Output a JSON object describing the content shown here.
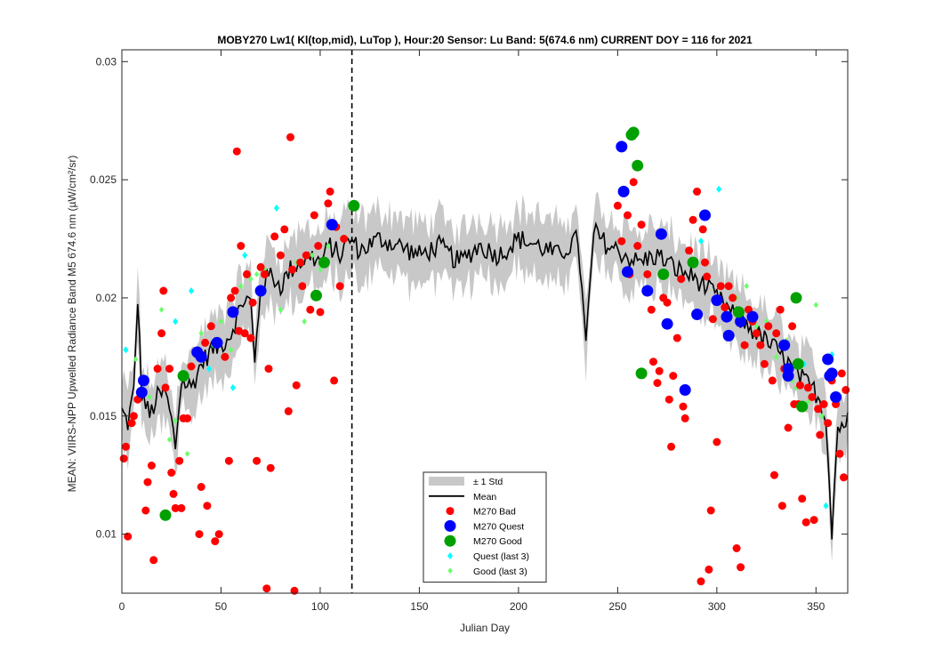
{
  "chart_data": {
    "type": "scatter",
    "title": "MOBY270   Lw1( Kl(top,mid), LuTop ),   Hour:20 Sensor: Lu Band: 5(674.6 nm)   CURRENT DOY = 116 for 2021",
    "xlabel": "Julian Day",
    "ylabel": "MEAN: VIIRS-NPP Upwelled Radiance Band M5 674.6 nm (µW/cm²/sr)",
    "xlim": [
      0,
      366
    ],
    "ylim": [
      0.0075,
      0.0305
    ],
    "x_ticks": [
      0,
      50,
      100,
      150,
      200,
      250,
      300,
      350
    ],
    "x_tick_labels": [
      "0",
      "50",
      "100",
      "150",
      "200",
      "250",
      "300",
      "350"
    ],
    "y_ticks": [
      0.01,
      0.015,
      0.02,
      0.025,
      0.03
    ],
    "y_tick_labels": [
      "0.01",
      "0.015",
      "0.02",
      "0.025",
      "0.03"
    ],
    "current_doy": 116,
    "grid": false,
    "legend_position": "bottom-center",
    "legend": [
      "± 1 Std",
      "Mean",
      "M270 Bad",
      "M270 Quest",
      "M270 Good",
      "Quest (last 3)",
      "Good (last 3)"
    ],
    "colors": {
      "std_band": "#c8c8c8",
      "mean": "#000000",
      "bad": "#ff0000",
      "quest": "#0000ff",
      "good": "#00a000",
      "quest_last3": "#00ffff",
      "good_last3": "#66ff66"
    },
    "mean_anchors": [
      [
        0,
        0.0152
      ],
      [
        3,
        0.0147
      ],
      [
        6,
        0.016
      ],
      [
        8,
        0.02
      ],
      [
        10,
        0.016
      ],
      [
        14,
        0.015
      ],
      [
        18,
        0.0158
      ],
      [
        22,
        0.016
      ],
      [
        25,
        0.0148
      ],
      [
        27,
        0.0137
      ],
      [
        30,
        0.0165
      ],
      [
        35,
        0.0162
      ],
      [
        40,
        0.0172
      ],
      [
        45,
        0.0178
      ],
      [
        50,
        0.018
      ],
      [
        55,
        0.0185
      ],
      [
        58,
        0.0192
      ],
      [
        62,
        0.02
      ],
      [
        65,
        0.0198
      ],
      [
        67,
        0.0172
      ],
      [
        70,
        0.0205
      ],
      [
        75,
        0.021
      ],
      [
        80,
        0.0205
      ],
      [
        85,
        0.0212
      ],
      [
        90,
        0.0215
      ],
      [
        95,
        0.0218
      ],
      [
        100,
        0.0215
      ],
      [
        105,
        0.0222
      ],
      [
        110,
        0.0218
      ],
      [
        115,
        0.0225
      ],
      [
        120,
        0.022
      ],
      [
        130,
        0.0225
      ],
      [
        140,
        0.0222
      ],
      [
        150,
        0.0218
      ],
      [
        160,
        0.0222
      ],
      [
        170,
        0.0215
      ],
      [
        180,
        0.0222
      ],
      [
        190,
        0.0218
      ],
      [
        200,
        0.0225
      ],
      [
        210,
        0.0222
      ],
      [
        220,
        0.0218
      ],
      [
        230,
        0.0225
      ],
      [
        234,
        0.018
      ],
      [
        238,
        0.0228
      ],
      [
        245,
        0.0222
      ],
      [
        250,
        0.022
      ],
      [
        260,
        0.0215
      ],
      [
        270,
        0.0218
      ],
      [
        280,
        0.0212
      ],
      [
        290,
        0.0208
      ],
      [
        300,
        0.02
      ],
      [
        310,
        0.0192
      ],
      [
        320,
        0.0185
      ],
      [
        330,
        0.0178
      ],
      [
        340,
        0.0168
      ],
      [
        350,
        0.016
      ],
      [
        355,
        0.015
      ],
      [
        358,
        0.0102
      ],
      [
        361,
        0.0145
      ],
      [
        366,
        0.0148
      ]
    ],
    "std_half_width": 0.0012,
    "series": [
      {
        "name": "M270 Bad",
        "points": [
          [
            1,
            0.0132
          ],
          [
            2,
            0.0137
          ],
          [
            3,
            0.0099
          ],
          [
            5,
            0.0147
          ],
          [
            6,
            0.015
          ],
          [
            8,
            0.0157
          ],
          [
            12,
            0.011
          ],
          [
            13,
            0.0122
          ],
          [
            15,
            0.0129
          ],
          [
            16,
            0.0089
          ],
          [
            18,
            0.017
          ],
          [
            20,
            0.0185
          ],
          [
            21,
            0.0203
          ],
          [
            22,
            0.0162
          ],
          [
            24,
            0.017
          ],
          [
            25,
            0.0126
          ],
          [
            26,
            0.0117
          ],
          [
            27,
            0.0111
          ],
          [
            29,
            0.0131
          ],
          [
            30,
            0.0111
          ],
          [
            31,
            0.0149
          ],
          [
            33,
            0.0149
          ],
          [
            35,
            0.0171
          ],
          [
            38,
            0.0176
          ],
          [
            39,
            0.01
          ],
          [
            40,
            0.012
          ],
          [
            42,
            0.0181
          ],
          [
            43,
            0.0112
          ],
          [
            45,
            0.0188
          ],
          [
            47,
            0.0097
          ],
          [
            49,
            0.01
          ],
          [
            52,
            0.0175
          ],
          [
            54,
            0.0131
          ],
          [
            55,
            0.02
          ],
          [
            57,
            0.0203
          ],
          [
            58,
            0.0262
          ],
          [
            59,
            0.0186
          ],
          [
            60,
            0.0222
          ],
          [
            62,
            0.0185
          ],
          [
            63,
            0.021
          ],
          [
            65,
            0.0183
          ],
          [
            66,
            0.0198
          ],
          [
            68,
            0.0131
          ],
          [
            70,
            0.0213
          ],
          [
            72,
            0.021
          ],
          [
            73,
            0.0077
          ],
          [
            74,
            0.017
          ],
          [
            75,
            0.0128
          ],
          [
            77,
            0.0226
          ],
          [
            80,
            0.0218
          ],
          [
            82,
            0.0229
          ],
          [
            84,
            0.0152
          ],
          [
            85,
            0.0268
          ],
          [
            86,
            0.0212
          ],
          [
            87,
            0.0076
          ],
          [
            88,
            0.0163
          ],
          [
            90,
            0.0215
          ],
          [
            91,
            0.0205
          ],
          [
            93,
            0.0218
          ],
          [
            95,
            0.0195
          ],
          [
            97,
            0.0235
          ],
          [
            99,
            0.0222
          ],
          [
            100,
            0.0194
          ],
          [
            102,
            0.0215
          ],
          [
            104,
            0.024
          ],
          [
            105,
            0.0245
          ],
          [
            107,
            0.0165
          ],
          [
            108,
            0.023
          ],
          [
            110,
            0.0205
          ],
          [
            112,
            0.0225
          ],
          [
            250,
            0.0239
          ],
          [
            252,
            0.0224
          ],
          [
            255,
            0.0235
          ],
          [
            256,
            0.021
          ],
          [
            258,
            0.0249
          ],
          [
            260,
            0.0222
          ],
          [
            262,
            0.0231
          ],
          [
            265,
            0.021
          ],
          [
            267,
            0.0195
          ],
          [
            268,
            0.0173
          ],
          [
            270,
            0.0164
          ],
          [
            271,
            0.0169
          ],
          [
            273,
            0.02
          ],
          [
            275,
            0.0198
          ],
          [
            276,
            0.0157
          ],
          [
            277,
            0.0137
          ],
          [
            278,
            0.0167
          ],
          [
            280,
            0.0183
          ],
          [
            282,
            0.0208
          ],
          [
            283,
            0.0154
          ],
          [
            284,
            0.0149
          ],
          [
            286,
            0.022
          ],
          [
            288,
            0.0233
          ],
          [
            290,
            0.0245
          ],
          [
            292,
            0.008
          ],
          [
            293,
            0.0229
          ],
          [
            294,
            0.0215
          ],
          [
            295,
            0.0209
          ],
          [
            296,
            0.0085
          ],
          [
            297,
            0.011
          ],
          [
            298,
            0.0191
          ],
          [
            300,
            0.0139
          ],
          [
            302,
            0.0205
          ],
          [
            304,
            0.0196
          ],
          [
            306,
            0.0205
          ],
          [
            308,
            0.02
          ],
          [
            310,
            0.0094
          ],
          [
            312,
            0.0086
          ],
          [
            314,
            0.018
          ],
          [
            316,
            0.0195
          ],
          [
            318,
            0.019
          ],
          [
            320,
            0.0185
          ],
          [
            322,
            0.018
          ],
          [
            324,
            0.0172
          ],
          [
            326,
            0.0188
          ],
          [
            328,
            0.0165
          ],
          [
            329,
            0.0125
          ],
          [
            330,
            0.0185
          ],
          [
            332,
            0.0195
          ],
          [
            333,
            0.0112
          ],
          [
            334,
            0.017
          ],
          [
            336,
            0.0145
          ],
          [
            338,
            0.0188
          ],
          [
            339,
            0.0155
          ],
          [
            341,
            0.0155
          ],
          [
            342,
            0.0163
          ],
          [
            343,
            0.0115
          ],
          [
            345,
            0.0105
          ],
          [
            346,
            0.0162
          ],
          [
            348,
            0.0158
          ],
          [
            349,
            0.0106
          ],
          [
            351,
            0.0153
          ],
          [
            352,
            0.0142
          ],
          [
            354,
            0.0155
          ],
          [
            356,
            0.0147
          ],
          [
            358,
            0.0165
          ],
          [
            360,
            0.0155
          ],
          [
            362,
            0.0134
          ],
          [
            363,
            0.0168
          ],
          [
            364,
            0.0124
          ],
          [
            365,
            0.0161
          ]
        ]
      },
      {
        "name": "M270 Quest",
        "points": [
          [
            10,
            0.016
          ],
          [
            11,
            0.0165
          ],
          [
            38,
            0.0177
          ],
          [
            40,
            0.0175
          ],
          [
            48,
            0.0181
          ],
          [
            56,
            0.0194
          ],
          [
            70,
            0.0203
          ],
          [
            106,
            0.0231
          ],
          [
            252,
            0.0264
          ],
          [
            253,
            0.0245
          ],
          [
            255,
            0.0211
          ],
          [
            265,
            0.0203
          ],
          [
            272,
            0.0227
          ],
          [
            275,
            0.0189
          ],
          [
            284,
            0.0161
          ],
          [
            290,
            0.0193
          ],
          [
            294,
            0.0235
          ],
          [
            300,
            0.0199
          ],
          [
            305,
            0.0192
          ],
          [
            306,
            0.0184
          ],
          [
            312,
            0.019
          ],
          [
            318,
            0.0192
          ],
          [
            334,
            0.018
          ],
          [
            336,
            0.017
          ],
          [
            336,
            0.0167
          ],
          [
            356,
            0.0174
          ],
          [
            357,
            0.0167
          ],
          [
            358,
            0.0168
          ],
          [
            360,
            0.0158
          ]
        ]
      },
      {
        "name": "M270 Good",
        "points": [
          [
            22,
            0.0108
          ],
          [
            31,
            0.0167
          ],
          [
            98,
            0.0201
          ],
          [
            102,
            0.0215
          ],
          [
            117,
            0.0239
          ],
          [
            257,
            0.0269
          ],
          [
            258,
            0.027
          ],
          [
            260,
            0.0256
          ],
          [
            262,
            0.0168
          ],
          [
            273,
            0.021
          ],
          [
            288,
            0.0215
          ],
          [
            311,
            0.0194
          ],
          [
            340,
            0.02
          ],
          [
            341,
            0.0172
          ],
          [
            343,
            0.0154
          ]
        ]
      },
      {
        "name": "Quest (last 3)",
        "points": [
          [
            2,
            0.0178
          ],
          [
            27,
            0.019
          ],
          [
            35,
            0.0203
          ],
          [
            44,
            0.017
          ],
          [
            56,
            0.0162
          ],
          [
            62,
            0.0218
          ],
          [
            78,
            0.0238
          ],
          [
            289,
            0.0245
          ],
          [
            301,
            0.0246
          ],
          [
            292,
            0.0224
          ],
          [
            344,
            0.0172
          ],
          [
            355,
            0.0112
          ],
          [
            358,
            0.0176
          ]
        ]
      },
      {
        "name": "Good (last 3)",
        "points": [
          [
            5,
            0.015
          ],
          [
            7,
            0.0174
          ],
          [
            14,
            0.0158
          ],
          [
            20,
            0.0195
          ],
          [
            24,
            0.014
          ],
          [
            27,
            0.0148
          ],
          [
            33,
            0.0134
          ],
          [
            40,
            0.0185
          ],
          [
            46,
            0.018
          ],
          [
            50,
            0.019
          ],
          [
            55,
            0.0178
          ],
          [
            60,
            0.0205
          ],
          [
            65,
            0.0208
          ],
          [
            68,
            0.021
          ],
          [
            72,
            0.0212
          ],
          [
            80,
            0.0195
          ],
          [
            88,
            0.0215
          ],
          [
            92,
            0.019
          ],
          [
            96,
            0.0218
          ],
          [
            100,
            0.0212
          ],
          [
            104,
            0.0222
          ],
          [
            310,
            0.02
          ],
          [
            315,
            0.0205
          ],
          [
            320,
            0.0188
          ],
          [
            325,
            0.019
          ],
          [
            330,
            0.0175
          ],
          [
            335,
            0.0182
          ],
          [
            338,
            0.0165
          ],
          [
            340,
            0.0162
          ],
          [
            346,
            0.0156
          ],
          [
            350,
            0.0197
          ],
          [
            353,
            0.015
          ]
        ]
      }
    ]
  }
}
